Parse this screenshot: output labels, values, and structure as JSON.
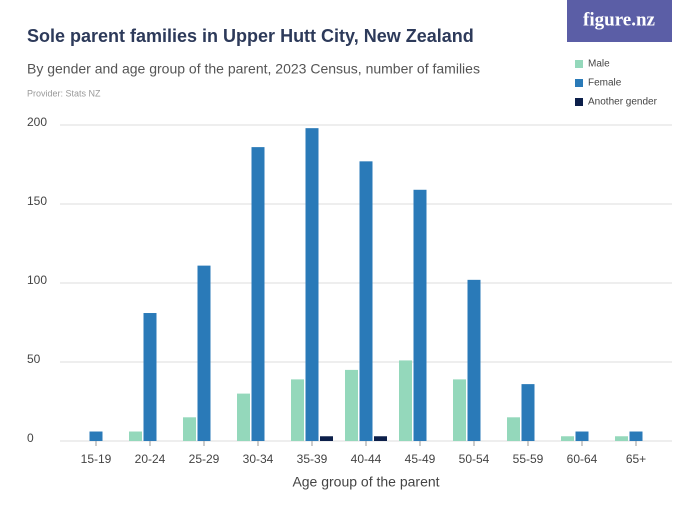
{
  "logo": "figure.nz",
  "chart_data": {
    "type": "bar",
    "title": "Sole parent families in Upper Hutt City, New Zealand",
    "subtitle": "By gender and age group of the parent, 2023 Census, number of families",
    "provider": "Provider: Stats NZ",
    "x_label": "Age group of the parent",
    "categories": [
      "15-19",
      "20-24",
      "25-29",
      "30-34",
      "35-39",
      "40-44",
      "45-49",
      "50-54",
      "55-59",
      "60-64",
      "65+"
    ],
    "series": [
      {
        "name": "Male",
        "color": "#94d8bb",
        "values": [
          0,
          6,
          15,
          30,
          39,
          45,
          51,
          39,
          15,
          3,
          3
        ]
      },
      {
        "name": "Female",
        "color": "#2a7ab8",
        "values": [
          6,
          81,
          111,
          186,
          198,
          177,
          159,
          102,
          36,
          6,
          6
        ]
      },
      {
        "name": "Another gender",
        "color": "#0c1f4a",
        "values": [
          0,
          0,
          0,
          0,
          3,
          3,
          0,
          0,
          0,
          0,
          0
        ]
      }
    ],
    "ylim": [
      0,
      200
    ],
    "yticks": [
      0,
      50,
      100,
      150,
      200
    ],
    "grid": true
  }
}
